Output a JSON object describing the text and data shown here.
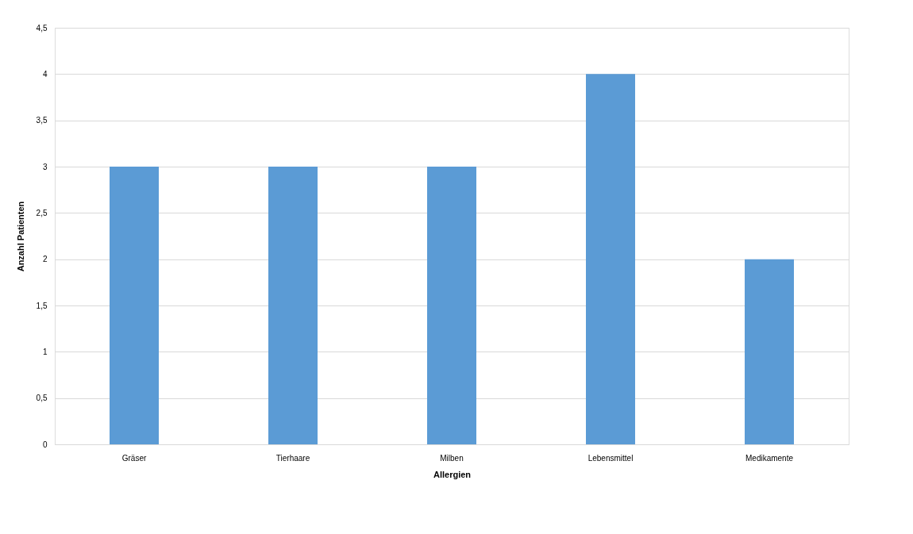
{
  "chart_data": {
    "type": "bar",
    "xlabel": "Allergien",
    "ylabel": "Anzahl Patienten",
    "categories": [
      "Gräser",
      "Tierhaare",
      "Milben",
      "Lebensmittel",
      "Medikamente"
    ],
    "values": [
      3,
      3,
      3,
      4,
      2
    ],
    "color": "#5b9bd5",
    "ylim": [
      0,
      4.5
    ],
    "yticks": [
      0,
      {
        "value": 0.5,
        "label": "0,5"
      },
      1,
      {
        "value": 1.5,
        "label": "1,5"
      },
      2,
      {
        "value": 2.5,
        "label": "2,5"
      },
      3,
      {
        "value": 3.5,
        "label": "3,5"
      },
      4,
      {
        "value": 4.5,
        "label": "4,5"
      }
    ],
    "grid": "y",
    "legend": false
  }
}
